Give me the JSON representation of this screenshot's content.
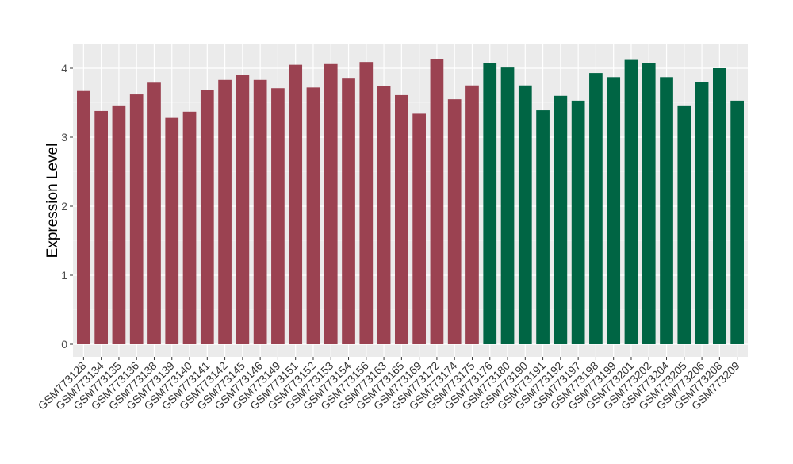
{
  "chart_data": {
    "type": "bar",
    "title": "",
    "xlabel": "",
    "ylabel": "Expression Level",
    "ylim": [
      -0.18,
      4.35
    ],
    "yticks": [
      0,
      1,
      2,
      3,
      4
    ],
    "grid": true,
    "categories": [
      "GSM773128",
      "GSM773134",
      "GSM773135",
      "GSM773136",
      "GSM773138",
      "GSM773139",
      "GSM773140",
      "GSM773141",
      "GSM773142",
      "GSM773145",
      "GSM773146",
      "GSM773149",
      "GSM773151",
      "GSM773152",
      "GSM773153",
      "GSM773154",
      "GSM773156",
      "GSM773163",
      "GSM773165",
      "GSM773169",
      "GSM773172",
      "GSM773174",
      "GSM773175",
      "GSM773176",
      "GSM773180",
      "GSM773190",
      "GSM773191",
      "GSM773192",
      "GSM773197",
      "GSM773198",
      "GSM773199",
      "GSM773201",
      "GSM773202",
      "GSM773204",
      "GSM773205",
      "GSM773206",
      "GSM773208",
      "GSM773209"
    ],
    "values": [
      3.67,
      3.38,
      3.45,
      3.62,
      3.79,
      3.28,
      3.37,
      3.68,
      3.83,
      3.9,
      3.83,
      3.71,
      4.05,
      3.72,
      4.06,
      3.86,
      4.09,
      3.74,
      3.61,
      3.34,
      4.13,
      3.55,
      3.75,
      4.07,
      4.01,
      3.75,
      3.39,
      3.6,
      3.53,
      3.93,
      3.87,
      4.12,
      4.08,
      3.87,
      3.45,
      3.8,
      4.0,
      3.53
    ],
    "groups": [
      0,
      0,
      0,
      0,
      0,
      0,
      0,
      0,
      0,
      0,
      0,
      0,
      0,
      0,
      0,
      0,
      0,
      0,
      0,
      0,
      0,
      0,
      0,
      1,
      1,
      1,
      1,
      1,
      1,
      1,
      1,
      1,
      1,
      1,
      1,
      1,
      1,
      1
    ],
    "group_colors": [
      "#9b4251",
      "#006544"
    ]
  }
}
